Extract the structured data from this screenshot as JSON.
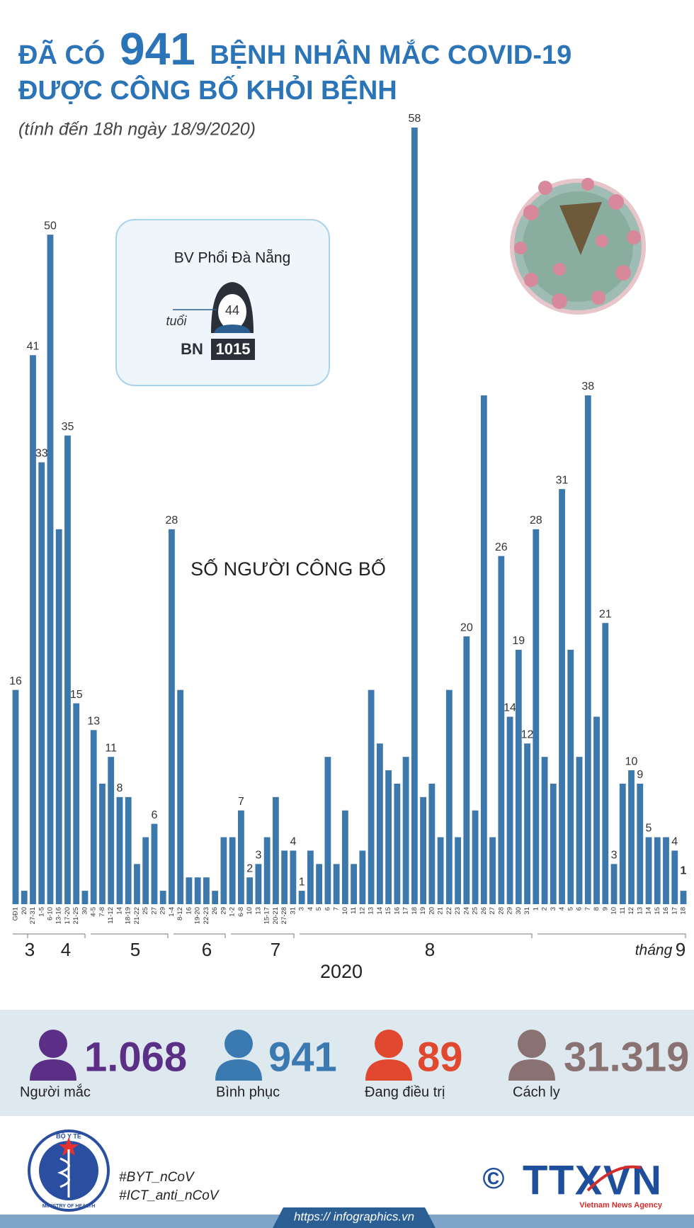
{
  "header": {
    "title_start": "ĐÃ CÓ",
    "title_number": "941",
    "title_end": "BỆNH NHÂN MẮC COVID-19",
    "title_line2": "ĐƯỢC CÔNG BỐ KHỎI BỆNH",
    "subtitle": "(tính đến 18h ngày 18/9/2020)"
  },
  "callout": {
    "hospital": "BV Phổi Đà Nẵng",
    "age": "44",
    "age_label": "tuổi",
    "patient_prefix": "BN",
    "patient_id": "1015"
  },
  "chart_data": {
    "type": "bar",
    "title": "SỐ NGƯỜI CÔNG BỐ",
    "color": "#3d78ad",
    "ylim": [
      0,
      58
    ],
    "categories": [
      "GĐ1",
      "20",
      "27-31",
      "1-5",
      "6-10",
      "13-16",
      "17-20",
      "21-25",
      "30",
      "4-5",
      "7-8",
      "11-12",
      "14",
      "18-19",
      "21-22",
      "25",
      "27",
      "29",
      "1-4",
      "8-12",
      "16",
      "19-20",
      "22-23",
      "26",
      "29",
      "1-2",
      "6-8",
      "10",
      "13",
      "15-17",
      "20-21",
      "27-28",
      "31",
      "3",
      "4",
      "5",
      "6",
      "7",
      "10",
      "11",
      "12",
      "13",
      "14",
      "15",
      "16",
      "17",
      "18",
      "19",
      "20",
      "21",
      "22",
      "23",
      "24",
      "25",
      "26",
      "27",
      "28",
      "29",
      "30",
      "31",
      "1",
      "2",
      "3",
      "4",
      "5",
      "6",
      "7",
      "8",
      "9",
      "10",
      "11",
      "12",
      "13",
      "14",
      "15",
      "16",
      "17",
      "18"
    ],
    "values": [
      16,
      1,
      41,
      33,
      50,
      28,
      35,
      15,
      1,
      13,
      9,
      11,
      8,
      8,
      3,
      5,
      6,
      1,
      28,
      16,
      2,
      2,
      2,
      1,
      5,
      5,
      7,
      2,
      3,
      5,
      8,
      4,
      4,
      1,
      4,
      3,
      11,
      3,
      7,
      3,
      4,
      16,
      12,
      10,
      9,
      11,
      58,
      8,
      9,
      5,
      16,
      5,
      20,
      7,
      38,
      5,
      26,
      14,
      19,
      12,
      28,
      11,
      9,
      31,
      19,
      11,
      38,
      14,
      21,
      3,
      9,
      10,
      9,
      5,
      5,
      5,
      4,
      1
    ],
    "value_labels": [
      "16",
      null,
      "41",
      "33",
      "50",
      null,
      "35",
      "15",
      null,
      "13",
      null,
      "11",
      "8",
      null,
      null,
      null,
      "6",
      null,
      "28",
      null,
      null,
      null,
      null,
      null,
      null,
      null,
      "7",
      "2",
      "3",
      null,
      null,
      null,
      "4",
      "1",
      null,
      null,
      null,
      null,
      null,
      null,
      null,
      null,
      null,
      null,
      null,
      null,
      "58",
      null,
      null,
      null,
      null,
      null,
      "20",
      null,
      null,
      null,
      "26",
      "14",
      "19",
      "12",
      "28",
      null,
      null,
      "31",
      null,
      null,
      "38",
      null,
      "21",
      "3",
      null,
      "10",
      "9",
      "5",
      null,
      null,
      "4",
      "1"
    ],
    "months": [
      "3",
      "4",
      "5",
      "6",
      "7",
      "8",
      "9"
    ],
    "month_prefix": "tháng",
    "year": "2020"
  },
  "stats": [
    {
      "value": "1.068",
      "label": "Người mắc",
      "color": "#5b2f86"
    },
    {
      "value": "941",
      "label": "Bình phục",
      "color": "#3b7ab0"
    },
    {
      "value": "89",
      "label": "Đang điều trị",
      "color": "#e0492f"
    },
    {
      "value": "31.319",
      "label": "Cách ly",
      "color": "#8a7272"
    }
  ],
  "footer": {
    "ministry_vi": "BỘ Y TẾ",
    "ministry_en": "MINISTRY OF HEALTH",
    "hashtag1": "#BYT_nCoV",
    "hashtag2": "#ICT_anti_nCoV",
    "url": "https:// infographics.vn",
    "copyright": "©",
    "agency": "TTXVN",
    "agency_en": "Vietnam News Agency"
  }
}
